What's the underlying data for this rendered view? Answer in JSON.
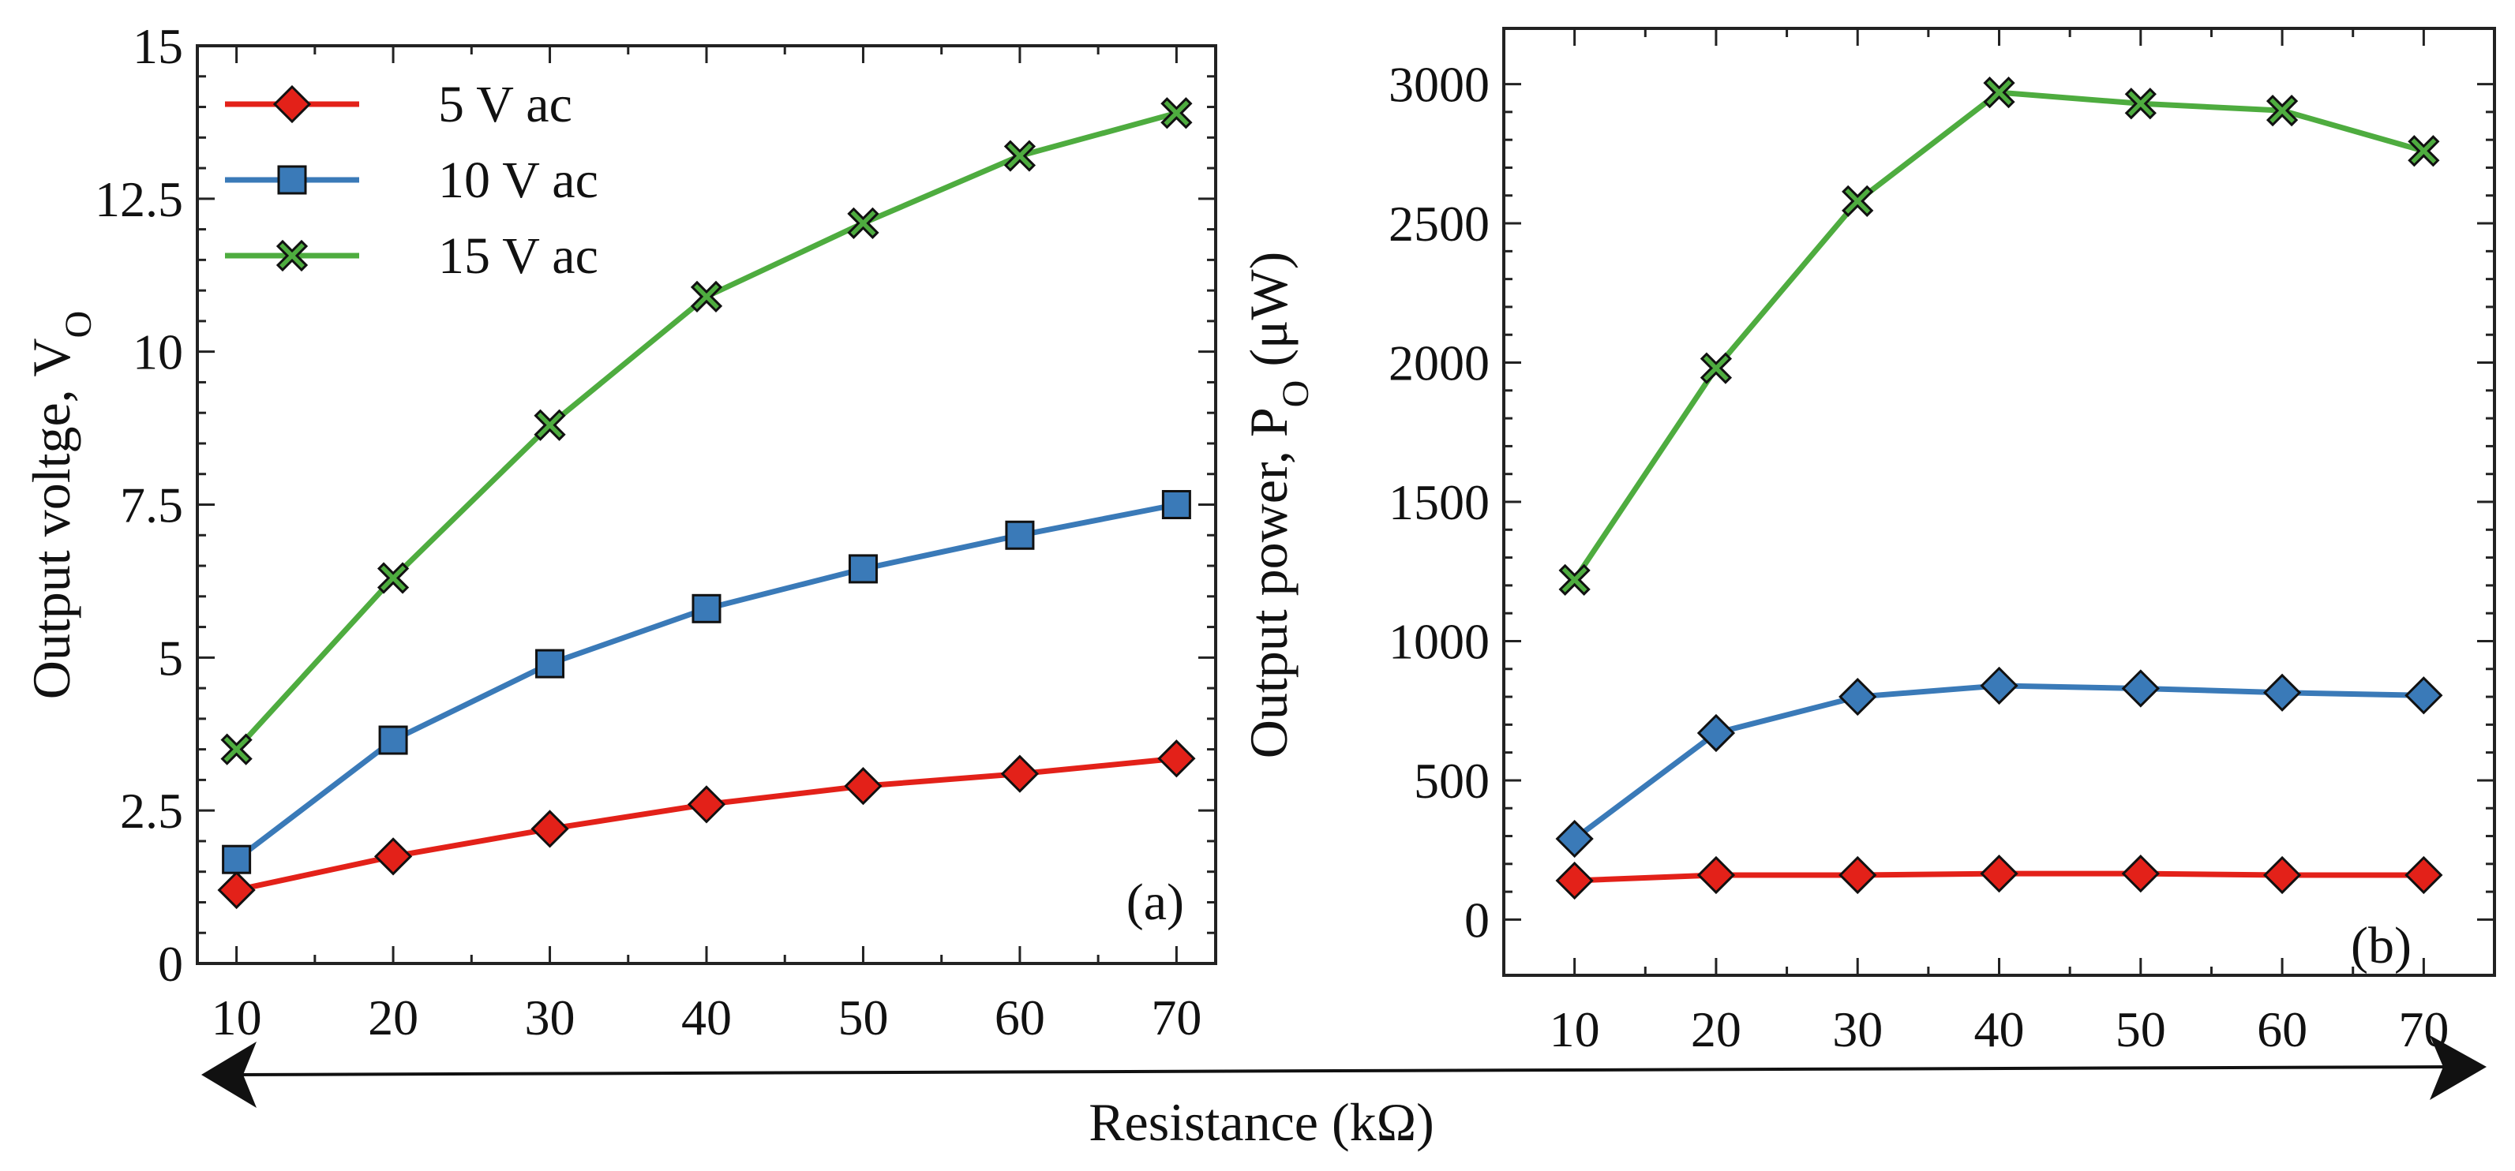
{
  "chart_data": [
    {
      "type": "line",
      "panel": "(a)",
      "ylabel_main": "Output voltge, V",
      "ylabel_sub": "O",
      "categories": [
        "10",
        "20",
        "30",
        "40",
        "50",
        "60",
        "70"
      ],
      "x": [
        10,
        20,
        30,
        40,
        50,
        60,
        70
      ],
      "xlim": [
        7.5,
        72.5
      ],
      "ylim": [
        0,
        15
      ],
      "yticks": [
        0,
        2.5,
        5,
        7.5,
        10,
        12.5,
        15
      ],
      "ytick_labels": [
        "0",
        "2.5",
        "5",
        "7.5",
        "10",
        "12.5",
        "15"
      ],
      "series": [
        {
          "name": "5 V ac",
          "marker": "diamond",
          "color": "#e32119",
          "values": [
            1.2,
            1.75,
            2.2,
            2.6,
            2.9,
            3.1,
            3.35
          ]
        },
        {
          "name": "10 V ac",
          "marker": "square",
          "color": "#3a7ab8",
          "values": [
            1.7,
            3.65,
            4.9,
            5.8,
            6.45,
            7.0,
            7.5
          ]
        },
        {
          "name": "15 V ac",
          "marker": "x",
          "color": "#4eac3f",
          "values": [
            3.5,
            6.3,
            8.8,
            10.9,
            12.1,
            13.2,
            13.9
          ]
        }
      ],
      "legend": "top-left",
      "grid": false
    },
    {
      "type": "line",
      "panel": "(b)",
      "ylabel_main": "Output power, P",
      "ylabel_sub": "O",
      "ylabel_unit": " (μW)",
      "categories": [
        "10",
        "20",
        "30",
        "40",
        "50",
        "60",
        "70"
      ],
      "x": [
        10,
        20,
        30,
        40,
        50,
        60,
        70
      ],
      "xlim": [
        5,
        75
      ],
      "ylim": [
        -200,
        3200
      ],
      "yticks": [
        0,
        500,
        1000,
        1500,
        2000,
        2500,
        3000
      ],
      "ytick_labels": [
        "0",
        "500",
        "1000",
        "1500",
        "2000",
        "2500",
        "3000"
      ],
      "series": [
        {
          "name": "5 V ac",
          "marker": "diamond",
          "color": "#e32119",
          "values": [
            140,
            160,
            160,
            165,
            165,
            160,
            160
          ]
        },
        {
          "name": "10 V ac",
          "marker": "diamond",
          "color": "#3a7ab8",
          "values": [
            290,
            670,
            800,
            840,
            830,
            815,
            805
          ]
        },
        {
          "name": "15 V ac",
          "marker": "x",
          "color": "#4eac3f",
          "values": [
            1220,
            1980,
            2580,
            2970,
            2930,
            2905,
            2760
          ]
        }
      ],
      "grid": false
    }
  ],
  "shared_xlabel": "Resistance (kΩ)"
}
